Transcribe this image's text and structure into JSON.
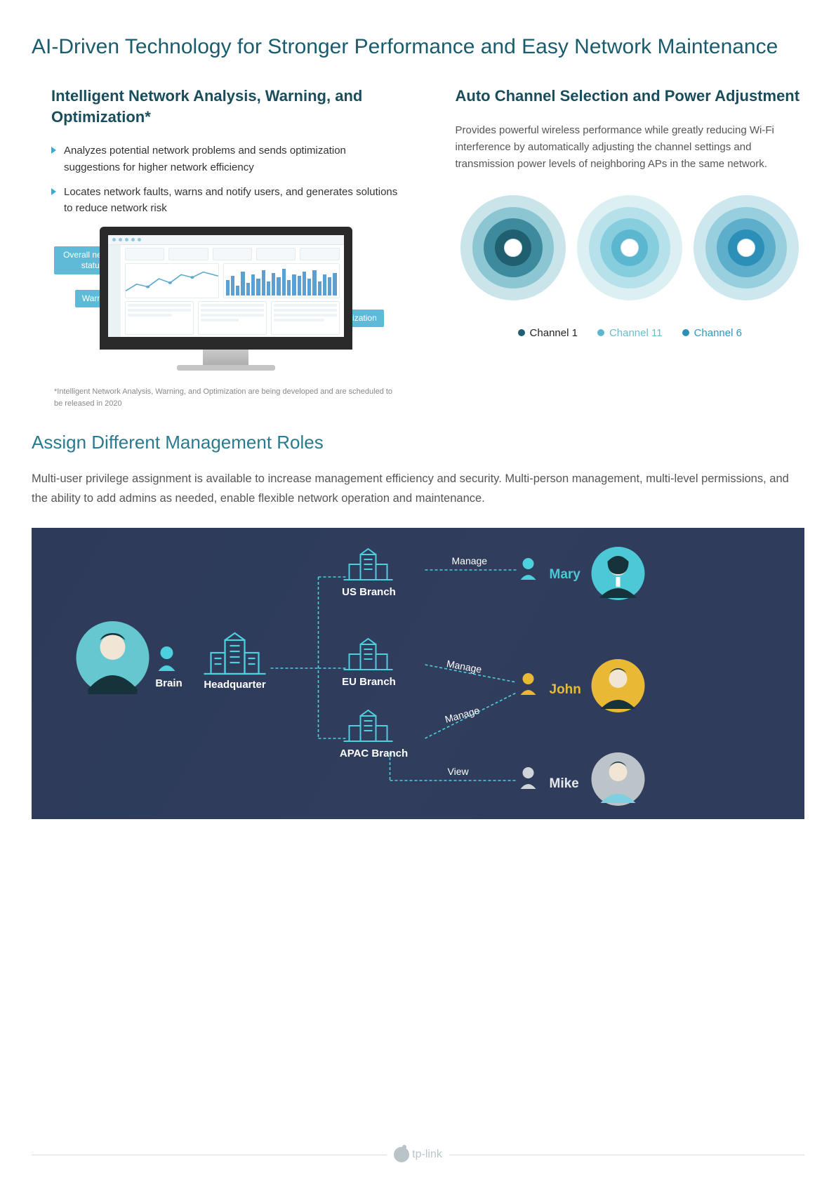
{
  "colors": {
    "heading": "#1a5c6e",
    "subheading": "#1a4d5c",
    "accent_teal": "#5ebad7",
    "text": "#333333",
    "muted": "#888888",
    "diagram_bg": "#394a6b",
    "teal_building": "#4cd0dd",
    "role_mary": "#4cc8d6",
    "role_john": "#e9b935",
    "role_mike": "#d9dde0"
  },
  "main_title": "AI-Driven Technology for Stronger Performance and Easy Network Maintenance",
  "left": {
    "title": "Intelligent Network Analysis, Warning, and Optimization*",
    "bullets": [
      "Analyzes potential network problems and sends optimization suggestions for higher network efficiency",
      "Locates network faults, warns and notify users, and generates solutions to reduce network risk"
    ],
    "callouts": {
      "status": "Overall network status",
      "warning": "Warning",
      "optimization": "Optimization"
    },
    "footnote": "*Intelligent Network Analysis, Warning, and Optimization are being developed and are scheduled to be released in 2020",
    "dashboard_bars": [
      22,
      28,
      14,
      34,
      18,
      30,
      24,
      36,
      20,
      32,
      26,
      38,
      22,
      30,
      28,
      34,
      24,
      36,
      20,
      30,
      26,
      32
    ]
  },
  "right": {
    "title": "Auto Channel Selection and Power Adjustment",
    "description": "Provides powerful wireless performance while greatly reducing Wi-Fi interference by automatically adjusting the channel settings and transmission power levels of neighboring APs in the same network.",
    "channels": [
      {
        "label": "Channel 1",
        "color": "#1f5f70",
        "ring_colors": [
          "#1f5f70",
          "#3c8a9c",
          "#8cc6d2",
          "#c9e5ea"
        ],
        "label_color": "#222"
      },
      {
        "label": "Channel 11",
        "color": "#5bb7cf",
        "ring_colors": [
          "#5bb7cf",
          "#86cddd",
          "#b6e1ea",
          "#dcf0f4"
        ],
        "label_color": "#6fb9cc"
      },
      {
        "label": "Channel 6",
        "color": "#2b8fb8",
        "ring_colors": [
          "#2b8fb8",
          "#5caecb",
          "#97cfde",
          "#cce7ee"
        ],
        "label_color": "#3496bd"
      }
    ]
  },
  "roles": {
    "title": "Assign Different Management Roles",
    "description": "Multi-user privilege assignment is available to increase management efficiency and security. Multi-person management, multi-level permissions, and the ability to add admins as needed, enable flexible network operation and maintenance.",
    "hq_label": "Headquarter",
    "admin_label": "Brain",
    "branches": [
      {
        "name": "US Branch"
      },
      {
        "name": "EU Branch"
      },
      {
        "name": "APAC Branch"
      }
    ],
    "users": [
      {
        "name": "Mary",
        "color": "#4cc8d6",
        "avatar_bg": "#4cc8d6"
      },
      {
        "name": "John",
        "color": "#e9b935",
        "avatar_bg": "#e9b935"
      },
      {
        "name": "Mike",
        "color": "#e6e9eb",
        "avatar_bg": "#bcc3c9"
      }
    ],
    "edges": {
      "manage": "Manage",
      "view": "View"
    }
  },
  "footer": {
    "brand": "tp-link"
  }
}
